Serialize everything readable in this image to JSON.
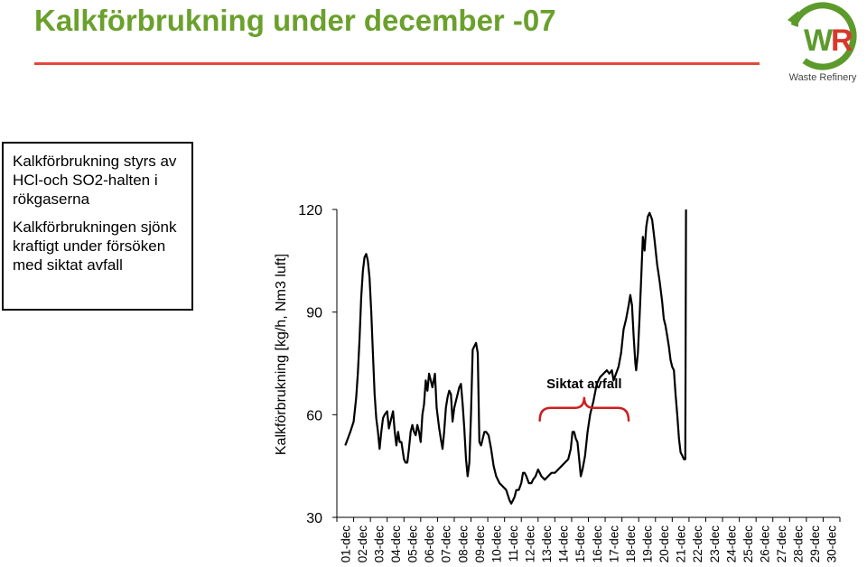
{
  "header": {
    "title": "Kalkförbrukning under december -07",
    "logo_text": "Waste Refinery",
    "logo_mark": "WR",
    "colors": {
      "title": "#6aa02c",
      "rule": "#e4473a",
      "logo_green": "#5c9a2c",
      "logo_red": "#d8382c"
    }
  },
  "info_box": {
    "lines": [
      "Kalkförbrukning styrs av HCl-och SO2-halten i rökgaserna",
      "Kalkförbrukningen sjönk kraftigt under försöken med siktat avfall"
    ]
  },
  "chart_data": {
    "type": "line",
    "title": "",
    "xlabel": "",
    "ylabel": "Kalkförbrukning [kg/h, Nm3 luft]",
    "ylim": [
      30,
      120
    ],
    "yticks": [
      30,
      60,
      90,
      120
    ],
    "categories": [
      "01-dec",
      "02-dec",
      "03-dec",
      "04-dec",
      "05-dec",
      "06-dec",
      "07-dec",
      "08-dec",
      "09-dec",
      "10-dec",
      "11-dec",
      "12-dec",
      "13-dec",
      "14-dec",
      "15-dec",
      "16-dec",
      "17-dec",
      "18-dec",
      "19-dec",
      "20-dec",
      "21-dec",
      "22-dec",
      "23-dec",
      "24-dec",
      "25-dec",
      "26-dec",
      "27-dec",
      "28-dec",
      "29-dec",
      "30-dec"
    ],
    "series": [
      {
        "color": "#000000",
        "points": [
          [
            0.0,
            51
          ],
          [
            0.15,
            53
          ],
          [
            0.3,
            55
          ],
          [
            0.5,
            58
          ],
          [
            0.65,
            65
          ],
          [
            0.75,
            72
          ],
          [
            0.85,
            82
          ],
          [
            0.95,
            94
          ],
          [
            1.05,
            102
          ],
          [
            1.15,
            106
          ],
          [
            1.25,
            107
          ],
          [
            1.35,
            105
          ],
          [
            1.45,
            100
          ],
          [
            1.55,
            90
          ],
          [
            1.65,
            78
          ],
          [
            1.75,
            66
          ],
          [
            1.85,
            59
          ],
          [
            1.95,
            55
          ],
          [
            2.05,
            50
          ],
          [
            2.15,
            55
          ],
          [
            2.25,
            59
          ],
          [
            2.35,
            60
          ],
          [
            2.5,
            61
          ],
          [
            2.6,
            56
          ],
          [
            2.7,
            58
          ],
          [
            2.85,
            61
          ],
          [
            2.95,
            55
          ],
          [
            3.05,
            51
          ],
          [
            3.15,
            55
          ],
          [
            3.25,
            52
          ],
          [
            3.35,
            52
          ],
          [
            3.5,
            47
          ],
          [
            3.6,
            46
          ],
          [
            3.7,
            46
          ],
          [
            3.8,
            50
          ],
          [
            3.9,
            55
          ],
          [
            4.0,
            57
          ],
          [
            4.1,
            55
          ],
          [
            4.2,
            54
          ],
          [
            4.3,
            57
          ],
          [
            4.4,
            55
          ],
          [
            4.5,
            52
          ],
          [
            4.6,
            60
          ],
          [
            4.7,
            63
          ],
          [
            4.8,
            70
          ],
          [
            4.9,
            67
          ],
          [
            5.0,
            72
          ],
          [
            5.1,
            70
          ],
          [
            5.2,
            68
          ],
          [
            5.35,
            72
          ],
          [
            5.45,
            62
          ],
          [
            5.6,
            56
          ],
          [
            5.7,
            53
          ],
          [
            5.8,
            50
          ],
          [
            5.9,
            55
          ],
          [
            6.0,
            62
          ],
          [
            6.1,
            65
          ],
          [
            6.2,
            67
          ],
          [
            6.3,
            66
          ],
          [
            6.4,
            58
          ],
          [
            6.5,
            62
          ],
          [
            6.6,
            64
          ],
          [
            6.7,
            66
          ],
          [
            6.8,
            68
          ],
          [
            6.9,
            69
          ],
          [
            7.0,
            63
          ],
          [
            7.1,
            56
          ],
          [
            7.2,
            47
          ],
          [
            7.3,
            42
          ],
          [
            7.4,
            46
          ],
          [
            7.5,
            60
          ],
          [
            7.6,
            79
          ],
          [
            7.7,
            80
          ],
          [
            7.8,
            81
          ],
          [
            7.9,
            78
          ],
          [
            8.0,
            52
          ],
          [
            8.1,
            51
          ],
          [
            8.2,
            53
          ],
          [
            8.3,
            55
          ],
          [
            8.4,
            55
          ],
          [
            8.55,
            54
          ],
          [
            8.7,
            50
          ],
          [
            8.85,
            45
          ],
          [
            9.0,
            42
          ],
          [
            9.2,
            40
          ],
          [
            9.4,
            39
          ],
          [
            9.6,
            38
          ],
          [
            9.8,
            35
          ],
          [
            9.9,
            34
          ],
          [
            10.0,
            35
          ],
          [
            10.1,
            36
          ],
          [
            10.2,
            38
          ],
          [
            10.35,
            38
          ],
          [
            10.5,
            40
          ],
          [
            10.6,
            43
          ],
          [
            10.7,
            43
          ],
          [
            10.8,
            42
          ],
          [
            10.95,
            40
          ],
          [
            11.1,
            40
          ],
          [
            11.2,
            41
          ],
          [
            11.35,
            42
          ],
          [
            11.5,
            44
          ],
          [
            11.7,
            42
          ],
          [
            11.9,
            41
          ],
          [
            12.1,
            42
          ],
          [
            12.3,
            43
          ],
          [
            12.5,
            43
          ],
          [
            12.7,
            44
          ],
          [
            12.9,
            45
          ],
          [
            13.1,
            46
          ],
          [
            13.3,
            47
          ],
          [
            13.45,
            50
          ],
          [
            13.55,
            55
          ],
          [
            13.65,
            55
          ],
          [
            13.75,
            53
          ],
          [
            13.85,
            52
          ],
          [
            13.95,
            47
          ],
          [
            14.05,
            42
          ],
          [
            14.15,
            44
          ],
          [
            14.3,
            48
          ],
          [
            14.45,
            55
          ],
          [
            14.6,
            60
          ],
          [
            14.8,
            64
          ],
          [
            15.0,
            69
          ],
          [
            15.2,
            71
          ],
          [
            15.4,
            72
          ],
          [
            15.6,
            73
          ],
          [
            15.75,
            72
          ],
          [
            15.9,
            73
          ],
          [
            16.0,
            70
          ],
          [
            16.15,
            72
          ],
          [
            16.3,
            74
          ],
          [
            16.45,
            78
          ],
          [
            16.6,
            85
          ],
          [
            16.75,
            88
          ],
          [
            16.9,
            92
          ],
          [
            17.0,
            95
          ],
          [
            17.1,
            92
          ],
          [
            17.2,
            83
          ],
          [
            17.3,
            75
          ],
          [
            17.35,
            73
          ],
          [
            17.45,
            78
          ],
          [
            17.55,
            88
          ],
          [
            17.65,
            100
          ],
          [
            17.75,
            112
          ],
          [
            17.85,
            108
          ],
          [
            17.95,
            115
          ],
          [
            18.05,
            118
          ],
          [
            18.15,
            119
          ],
          [
            18.3,
            117
          ],
          [
            18.45,
            111
          ],
          [
            18.6,
            104
          ],
          [
            18.75,
            99
          ],
          [
            18.9,
            93
          ],
          [
            19.0,
            88
          ],
          [
            19.1,
            86
          ],
          [
            19.2,
            83
          ],
          [
            19.3,
            80
          ],
          [
            19.4,
            76
          ],
          [
            19.5,
            74
          ],
          [
            19.6,
            73
          ],
          [
            19.7,
            66
          ],
          [
            19.8,
            60
          ],
          [
            19.9,
            53
          ],
          [
            20.0,
            49
          ],
          [
            20.1,
            48
          ],
          [
            20.2,
            47
          ],
          [
            20.28,
            47
          ],
          [
            20.32,
            120
          ]
        ]
      }
    ],
    "annotations": [
      {
        "text": "Siktat avfall",
        "color": "#000000"
      }
    ],
    "bracket": {
      "from": 11.6,
      "to": 16.9,
      "y": 62,
      "color": "#cc1f1f"
    },
    "grid": false,
    "legend": "none"
  }
}
